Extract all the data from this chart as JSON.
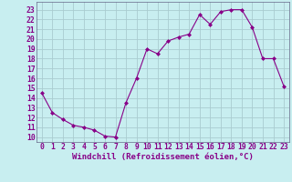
{
  "x": [
    0,
    1,
    2,
    3,
    4,
    5,
    6,
    7,
    8,
    9,
    10,
    11,
    12,
    13,
    14,
    15,
    16,
    17,
    18,
    19,
    20,
    21,
    22,
    23
  ],
  "y": [
    14.5,
    12.5,
    11.8,
    11.2,
    11.0,
    10.7,
    10.1,
    10.0,
    13.5,
    16.0,
    19.0,
    18.5,
    19.8,
    20.2,
    20.5,
    22.5,
    21.5,
    22.8,
    23.0,
    23.0,
    21.2,
    18.0,
    18.0,
    15.2
  ],
  "line_color": "#880088",
  "marker": "D",
  "markersize": 2.0,
  "linewidth": 0.8,
  "bg_color": "#c8eef0",
  "grid_color": "#aaccd0",
  "xlabel": "Windchill (Refroidissement éolien,°C)",
  "xlabel_fontsize": 6.5,
  "yticks": [
    10,
    11,
    12,
    13,
    14,
    15,
    16,
    17,
    18,
    19,
    20,
    21,
    22,
    23
  ],
  "xticks": [
    0,
    1,
    2,
    3,
    4,
    5,
    6,
    7,
    8,
    9,
    10,
    11,
    12,
    13,
    14,
    15,
    16,
    17,
    18,
    19,
    20,
    21,
    22,
    23
  ],
  "ylim": [
    9.5,
    23.8
  ],
  "xlim": [
    -0.5,
    23.5
  ],
  "tick_fontsize": 5.8,
  "tick_color": "#880088",
  "spine_color": "#666688"
}
